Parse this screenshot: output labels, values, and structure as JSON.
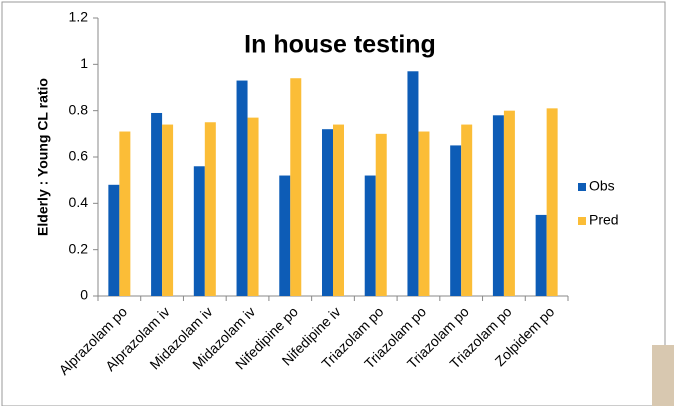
{
  "chart_data": {
    "type": "bar",
    "title": "In house testing",
    "ylabel": "Elderly : Young CL ratio",
    "categories": [
      "Alprazolam po",
      "Alprazolam iv",
      "Midazolam iv",
      "Midazolam iv",
      "Nifedipine po",
      "Nifedipine iv",
      "Triazolam po",
      "Triazolam po",
      "Triazolam po",
      "Triazolam po",
      "Zolpidem po"
    ],
    "series": [
      {
        "name": "Obs",
        "color": "#0d5cb6",
        "values": [
          0.48,
          0.79,
          0.56,
          0.93,
          0.52,
          0.72,
          0.52,
          0.97,
          0.65,
          0.78,
          0.35
        ]
      },
      {
        "name": "Pred",
        "color": "#fbbd37",
        "values": [
          0.71,
          0.74,
          0.75,
          0.77,
          0.94,
          0.74,
          0.7,
          0.71,
          0.74,
          0.8,
          0.81
        ]
      }
    ],
    "ylim": [
      0,
      1.2
    ],
    "yticks": [
      0,
      0.2,
      0.4,
      0.6,
      0.8,
      1,
      1.2
    ],
    "grid": false,
    "legend": "right"
  }
}
